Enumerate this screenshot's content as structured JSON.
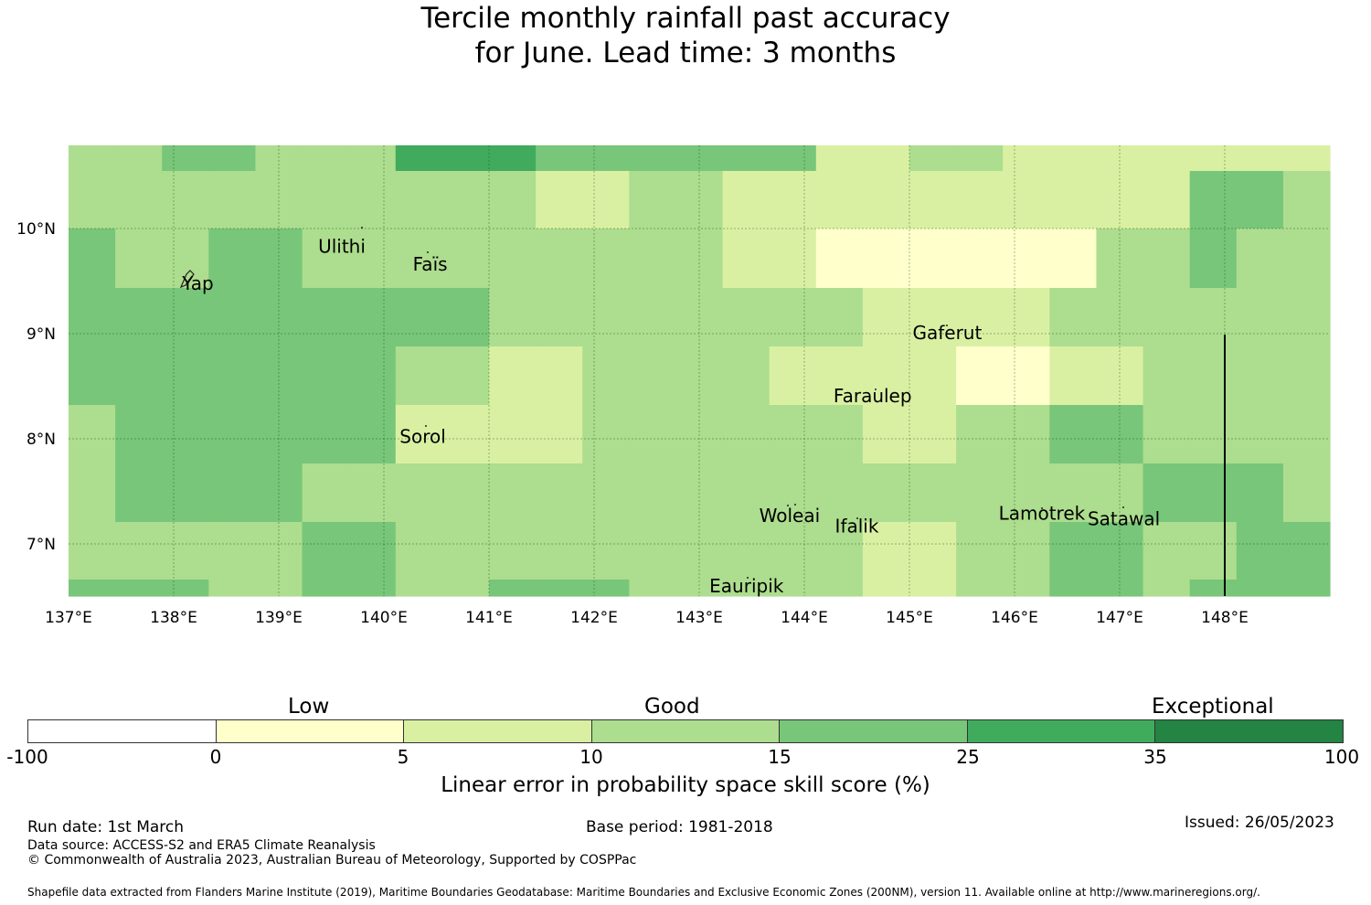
{
  "title": {
    "line1": "Tercile monthly rainfall past accuracy",
    "line2": "for June. Lead time: 3 months"
  },
  "map": {
    "lon_ticks": [
      "137°E",
      "138°E",
      "139°E",
      "140°E",
      "141°E",
      "142°E",
      "143°E",
      "144°E",
      "145°E",
      "146°E",
      "147°E",
      "148°E"
    ],
    "lat_ticks": [
      "10°N",
      "9°N",
      "8°N",
      "7°N"
    ],
    "places": [
      {
        "name": "Ulithi",
        "lon": 139.6,
        "lat": 9.83
      },
      {
        "name": "Faïs",
        "lon": 140.44,
        "lat": 9.66
      },
      {
        "name": "Yap",
        "lon": 138.23,
        "lat": 9.48
      },
      {
        "name": "Gaferut",
        "lon": 145.36,
        "lat": 9.01
      },
      {
        "name": "Faraulep",
        "lon": 144.65,
        "lat": 8.41
      },
      {
        "name": "Sorol",
        "lon": 140.37,
        "lat": 8.02
      },
      {
        "name": "Woleai",
        "lon": 143.86,
        "lat": 7.27
      },
      {
        "name": "Ifalik",
        "lon": 144.5,
        "lat": 7.17
      },
      {
        "name": "Lamotrek",
        "lon": 146.26,
        "lat": 7.29
      },
      {
        "name": "Satawal",
        "lon": 147.04,
        "lat": 7.24
      },
      {
        "name": "Eauripik",
        "lon": 143.45,
        "lat": 6.6
      }
    ],
    "grid_levels": [
      [
        3,
        3,
        4,
        4,
        3,
        3,
        3,
        5,
        5,
        5,
        4,
        4,
        4,
        4,
        4,
        4,
        2,
        2,
        3,
        3,
        2,
        2,
        2,
        2,
        2,
        2,
        2
      ],
      [
        3,
        3,
        3,
        3,
        3,
        3,
        3,
        3,
        3,
        3,
        2,
        2,
        3,
        3,
        2,
        2,
        2,
        2,
        2,
        2,
        2,
        2,
        2,
        2,
        4,
        4,
        3
      ],
      [
        4,
        3,
        3,
        4,
        4,
        3,
        3,
        3,
        3,
        3,
        3,
        3,
        3,
        3,
        2,
        2,
        1,
        1,
        1,
        1,
        1,
        1,
        3,
        3,
        4,
        3,
        3
      ],
      [
        4,
        4,
        4,
        4,
        4,
        4,
        4,
        4,
        4,
        3,
        3,
        3,
        3,
        3,
        3,
        3,
        3,
        2,
        2,
        2,
        2,
        3,
        3,
        3,
        3,
        3,
        3
      ],
      [
        4,
        4,
        4,
        4,
        4,
        4,
        4,
        3,
        3,
        2,
        2,
        3,
        3,
        3,
        3,
        2,
        2,
        2,
        2,
        1,
        1,
        2,
        2,
        3,
        3,
        3,
        3
      ],
      [
        3,
        4,
        4,
        4,
        4,
        4,
        4,
        2,
        2,
        2,
        2,
        3,
        3,
        3,
        3,
        3,
        3,
        2,
        2,
        3,
        3,
        4,
        4,
        3,
        3,
        3,
        3
      ],
      [
        3,
        4,
        4,
        4,
        4,
        3,
        3,
        3,
        3,
        3,
        3,
        3,
        3,
        3,
        3,
        3,
        3,
        3,
        3,
        3,
        3,
        3,
        3,
        4,
        4,
        4,
        3
      ],
      [
        3,
        3,
        3,
        3,
        3,
        4,
        4,
        3,
        3,
        3,
        3,
        3,
        3,
        3,
        3,
        3,
        3,
        2,
        2,
        3,
        3,
        4,
        4,
        3,
        3,
        4,
        4
      ],
      [
        4,
        4,
        4,
        3,
        3,
        4,
        4,
        3,
        3,
        4,
        4,
        4,
        3,
        3,
        3,
        3,
        3,
        2,
        2,
        3,
        3,
        4,
        4,
        3,
        4,
        4,
        4
      ]
    ]
  },
  "legend": {
    "categories": [
      "Low",
      "Good",
      "Exceptional"
    ],
    "colors": [
      "#ffffff",
      "#ffffcc",
      "#d9f0a3",
      "#addd8e",
      "#78c679",
      "#41ab5d",
      "#238443"
    ],
    "ticks": [
      "-100",
      "0",
      "5",
      "10",
      "15",
      "25",
      "35",
      "100"
    ],
    "label": "Linear error in probability space skill score (%)"
  },
  "footer": {
    "run_date": "Run date: 1st March",
    "base_period": "Base period: 1981-2018",
    "issued": "Issued: 26/05/2023",
    "data_source": "Data source: ACCESS-S2 and ERA5 Climate Reanalysis",
    "copyright": "© Commonwealth of Australia 2023, Australian Bureau of Meteorology, Supported by COSPPac",
    "shapefile": "Shapefile data extracted from Flanders Marine Institute (2019), Maritime Boundaries Geodatabase: Maritime Boundaries and Exclusive Economic Zones (200NM), version 11. Available online at http://www.marineregions.org/."
  }
}
